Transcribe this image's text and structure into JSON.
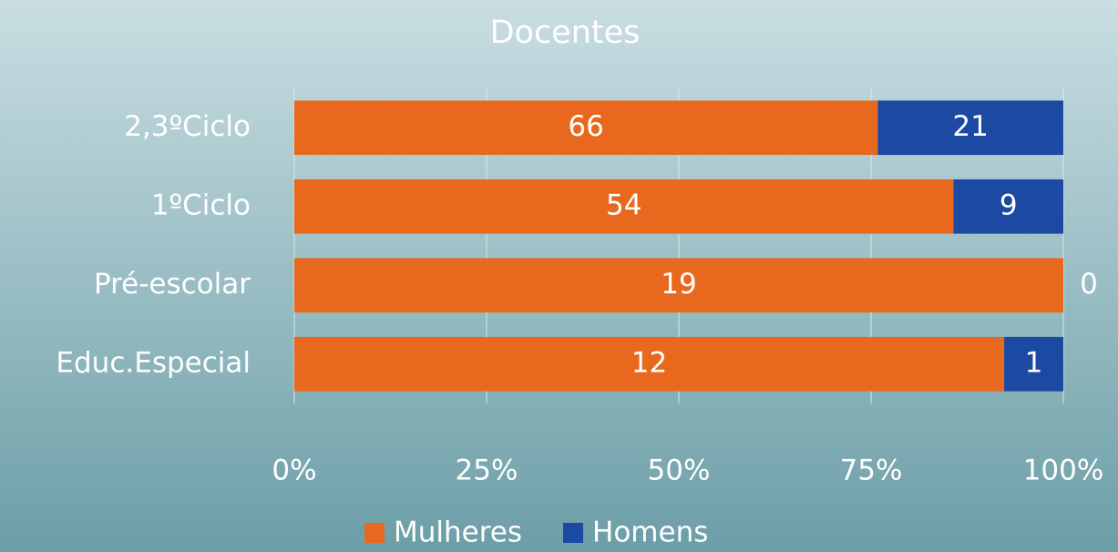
{
  "chart_data": {
    "type": "bar",
    "orientation": "horizontal",
    "stacking": "percent",
    "title": "Docentes",
    "categories": [
      "2,3ºCiclo",
      "1ºCiclo",
      "Pré-escolar",
      "Educ.Especial"
    ],
    "series": [
      {
        "name": "Mulheres",
        "color": "#e8691e",
        "values": [
          66,
          54,
          19,
          12
        ]
      },
      {
        "name": "Homens",
        "color": "#1c4aa2",
        "values": [
          21,
          9,
          0,
          1
        ]
      }
    ],
    "xlim": [
      0,
      100
    ],
    "xticks": [
      {
        "value": 0,
        "label": "0%"
      },
      {
        "value": 25,
        "label": "25%"
      },
      {
        "value": 50,
        "label": "50%"
      },
      {
        "value": 75,
        "label": "75%"
      },
      {
        "value": 100,
        "label": "100%"
      }
    ],
    "grid": true,
    "legend": "bottom"
  }
}
